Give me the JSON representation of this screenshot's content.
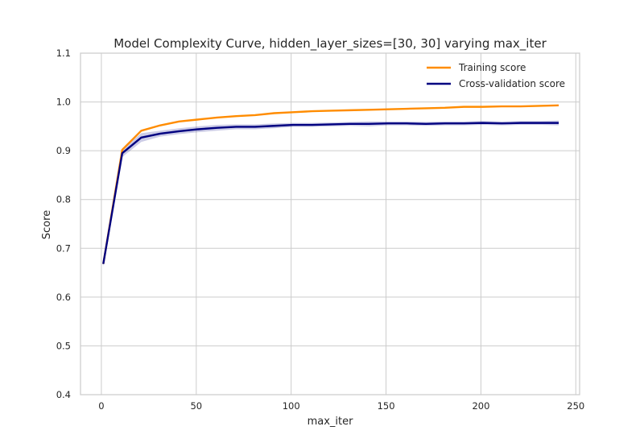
{
  "chart_data": {
    "type": "line",
    "title": "Model Complexity Curve, hidden_layer_sizes=[30, 30] varying max_iter",
    "xlabel": "max_iter",
    "ylabel": "Score",
    "xlim": [
      -11,
      252
    ],
    "ylim": [
      0.4,
      1.1
    ],
    "xticks": [
      0,
      50,
      100,
      150,
      200,
      250
    ],
    "yticks": [
      0.4,
      0.5,
      0.6,
      0.7,
      0.8,
      0.9,
      1.0,
      1.1
    ],
    "xtick_labels": [
      "0",
      "50",
      "100",
      "150",
      "200",
      "250"
    ],
    "ytick_labels": [
      "0.4",
      "0.5",
      "0.6",
      "0.7",
      "0.8",
      "0.9",
      "1.0",
      "1.1"
    ],
    "grid": true,
    "legend_position": "top-right",
    "x": [
      1,
      11,
      21,
      31,
      41,
      51,
      61,
      71,
      81,
      91,
      101,
      111,
      121,
      131,
      141,
      151,
      161,
      171,
      181,
      191,
      201,
      211,
      221,
      231,
      241
    ],
    "series": [
      {
        "name": "Training score",
        "color": "#ff8c00",
        "values": [
          0.668,
          0.902,
          0.941,
          0.952,
          0.96,
          0.964,
          0.968,
          0.971,
          0.973,
          0.977,
          0.979,
          0.981,
          0.982,
          0.983,
          0.984,
          0.985,
          0.986,
          0.987,
          0.988,
          0.99,
          0.99,
          0.991,
          0.991,
          0.992,
          0.993
        ],
        "band": null
      },
      {
        "name": "Cross-validation score",
        "color": "#000080",
        "band_color": "#000080",
        "values": [
          0.668,
          0.895,
          0.927,
          0.935,
          0.94,
          0.944,
          0.947,
          0.949,
          0.949,
          0.951,
          0.953,
          0.953,
          0.954,
          0.955,
          0.955,
          0.956,
          0.956,
          0.955,
          0.956,
          0.956,
          0.957,
          0.956,
          0.957,
          0.957,
          0.957
        ],
        "band": [
          0.006,
          0.008,
          0.009,
          0.006,
          0.006,
          0.006,
          0.006,
          0.005,
          0.005,
          0.005,
          0.004,
          0.004,
          0.004,
          0.004,
          0.005,
          0.004,
          0.004,
          0.004,
          0.004,
          0.004,
          0.004,
          0.004,
          0.004,
          0.004,
          0.005
        ]
      }
    ]
  }
}
